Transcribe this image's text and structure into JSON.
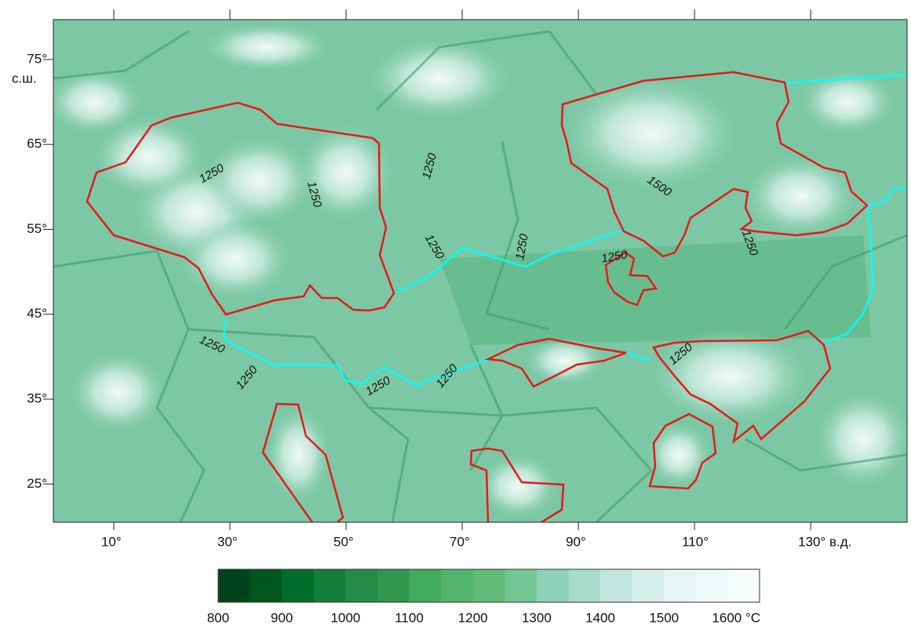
{
  "map": {
    "xlim": [
      -0.4,
      146.6
    ],
    "ylim": [
      20.5,
      79.7
    ],
    "xticks": [
      {
        "value": 10,
        "label": "10°"
      },
      {
        "value": 30,
        "label": "30°"
      },
      {
        "value": 50,
        "label": "50°"
      },
      {
        "value": 70,
        "label": "70°"
      },
      {
        "value": 90,
        "label": "90°"
      },
      {
        "value": 110,
        "label": "110°"
      },
      {
        "value": 130,
        "label": "130° в.д."
      }
    ],
    "yticks": [
      {
        "value": 25,
        "label": "25°"
      },
      {
        "value": 35,
        "label": "35°"
      },
      {
        "value": 45,
        "label": "45°"
      },
      {
        "value": 55,
        "label": "55°"
      },
      {
        "value": 65,
        "label": "65°"
      },
      {
        "value": 75,
        "label": "75°"
      }
    ],
    "y_unit": "с.ш.",
    "contour_labels": [
      "1250",
      "1250",
      "1250",
      "1250",
      "1250",
      "1250",
      "1250",
      "1250",
      "1250",
      "1250",
      "1250",
      "1250",
      "1500"
    ]
  },
  "colorbar": {
    "bounds": [
      800,
      1650
    ],
    "colors": [
      "#00441b",
      "#00561f",
      "#006d2c",
      "#137e3a",
      "#238b45",
      "#30974f",
      "#41ab5d",
      "#52b46c",
      "#62bb79",
      "#74c594",
      "#8fd0b8",
      "#a8dccc",
      "#c2e6df",
      "#d6efeb",
      "#e5f5f5",
      "#eef8f8",
      "#f7fcfd"
    ],
    "ticks": [
      800,
      900,
      1000,
      1100,
      1200,
      1300,
      1400,
      1500,
      {
        "value": 1600,
        "label": "1600 °C"
      }
    ]
  }
}
